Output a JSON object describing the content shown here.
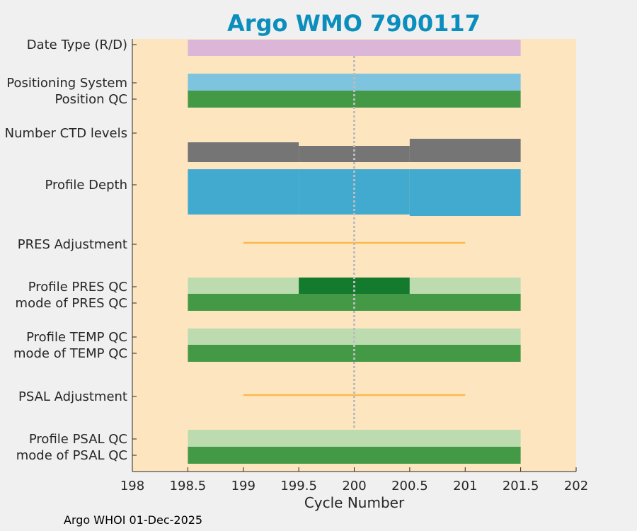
{
  "chart_data": {
    "type": "bar",
    "title": "Argo WMO 7900117",
    "xlabel": "Cycle Number",
    "xlim": [
      198,
      202
    ],
    "xticks": [
      "198",
      "198.5",
      "199",
      "199.5",
      "200",
      "200.5",
      "201",
      "201.5",
      "202"
    ],
    "xtick_values": [
      198,
      198.5,
      199,
      199.5,
      200,
      200.5,
      201,
      201.5,
      202
    ],
    "reference_line_x": 200,
    "rows": [
      {
        "label": "Date Type (R/D)"
      },
      {
        "label": "Positioning System"
      },
      {
        "label": "Position QC"
      },
      {
        "label": "Number CTD levels"
      },
      {
        "label": "Profile Depth"
      },
      {
        "label": "PRES Adjustment"
      },
      {
        "label": "Profile PRES QC"
      },
      {
        "label": "mode of PRES QC"
      },
      {
        "label": "Profile TEMP QC"
      },
      {
        "label": "mode of TEMP QC"
      },
      {
        "label": "PSAL Adjustment"
      },
      {
        "label": "Profile PSAL QC"
      },
      {
        "label": "mode of PSAL QC"
      }
    ],
    "cycles": [
      199,
      200,
      201
    ],
    "colors": {
      "background": "#fde6bf",
      "date_type": "#dcb6d8",
      "positioning_system": "#7fc4de",
      "qc_good": "#449946",
      "qc_light": "#bcdcb0",
      "qc_dark": "#147a2e",
      "ctd_levels": "#757575",
      "profile_depth": "#42aacf",
      "adjustment": "#fbb94d",
      "reference_line": "#bcbcbc"
    }
  },
  "footer": "Argo WHOI 01-Dec-2025"
}
